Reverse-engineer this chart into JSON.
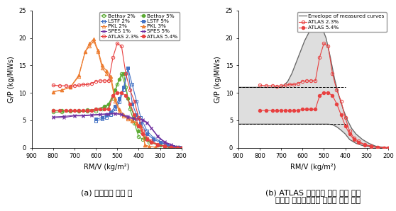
{
  "fig_width": 5.58,
  "fig_height": 2.98,
  "caption_a": "(a) 자연순환 유동 맵",
  "caption_b": "(b) ATLAS 자연순환 유동 맵과 국외\n    열수력 종합효과실험 장치의 커브 밴드",
  "series": [
    {
      "label": "Bethsy 2%",
      "color": "#5aaa32",
      "marker": "o",
      "fillstyle": "none",
      "rmv": [
        800,
        760,
        720,
        680,
        640,
        600,
        570,
        550,
        520,
        500,
        480,
        460,
        440,
        420,
        400,
        380,
        350,
        310,
        270,
        230,
        200
      ],
      "gp": [
        6.5,
        6.5,
        6.6,
        6.6,
        6.6,
        6.7,
        7.0,
        7.5,
        9.0,
        11.5,
        13.5,
        11.0,
        7.0,
        4.5,
        2.0,
        1.5,
        1.0,
        0.5,
        0.2,
        0.05,
        0.0
      ]
    },
    {
      "label": "Bethsy 5%",
      "color": "#5aaa32",
      "marker": "o",
      "fillstyle": "full",
      "rmv": [
        800,
        760,
        720,
        680,
        640,
        600,
        560,
        540,
        510,
        490,
        470,
        450,
        420,
        400,
        370,
        340,
        300,
        260,
        220,
        200
      ],
      "gp": [
        6.8,
        6.8,
        6.8,
        6.8,
        6.9,
        7.0,
        7.5,
        8.0,
        10.5,
        12.5,
        13.5,
        9.0,
        5.5,
        3.0,
        1.8,
        1.0,
        0.5,
        0.2,
        0.05,
        0.0
      ]
    },
    {
      "label": "LSTF 2%",
      "color": "#4472c4",
      "marker": "s",
      "fillstyle": "none",
      "rmv": [
        600,
        570,
        550,
        530,
        510,
        490,
        470,
        450,
        430,
        410,
        390,
        360,
        330,
        300,
        270,
        240,
        210,
        200
      ],
      "gp": [
        4.9,
        5.2,
        5.5,
        6.0,
        7.0,
        8.3,
        10.5,
        14.5,
        11.5,
        8.5,
        5.5,
        3.0,
        1.8,
        1.2,
        0.6,
        0.2,
        0.05,
        0.0
      ]
    },
    {
      "label": "LSTF 5%",
      "color": "#4472c4",
      "marker": "s",
      "fillstyle": "full",
      "rmv": [
        600,
        570,
        550,
        530,
        510,
        490,
        470,
        450,
        430,
        410,
        390,
        360,
        330,
        300,
        270,
        240,
        210,
        200
      ],
      "gp": [
        5.2,
        5.5,
        6.0,
        6.5,
        7.5,
        9.0,
        11.0,
        14.5,
        8.0,
        6.0,
        4.5,
        2.5,
        1.5,
        1.0,
        0.5,
        0.2,
        0.05,
        0.0
      ]
    },
    {
      "label": "PKL 2%",
      "color": "#ed7d31",
      "marker": "^",
      "fillstyle": "none",
      "rmv": [
        800,
        760,
        720,
        680,
        650,
        630,
        610,
        590,
        570,
        550,
        530,
        510,
        490,
        470,
        450,
        430,
        410,
        390,
        370,
        350,
        320
      ],
      "gp": [
        10.2,
        10.5,
        11.0,
        13.0,
        17.5,
        18.5,
        19.5,
        17.5,
        14.5,
        13.5,
        12.5,
        8.5,
        6.5,
        5.8,
        5.2,
        4.8,
        4.5,
        4.0,
        0.5,
        0.2,
        0.1
      ]
    },
    {
      "label": "PKL 3%",
      "color": "#ed7d31",
      "marker": "^",
      "fillstyle": "full",
      "rmv": [
        800,
        760,
        720,
        680,
        650,
        630,
        610,
        590,
        570,
        550,
        530,
        510,
        490,
        470,
        450,
        430,
        410,
        390,
        370,
        350,
        320
      ],
      "gp": [
        10.2,
        10.5,
        11.0,
        13.2,
        17.5,
        19.0,
        19.8,
        17.8,
        15.0,
        14.0,
        13.0,
        9.0,
        7.0,
        6.0,
        5.5,
        5.0,
        4.5,
        4.0,
        0.5,
        0.2,
        0.1
      ]
    },
    {
      "label": "SPES 1%",
      "color": "#7030a0",
      "marker": "x",
      "fillstyle": "none",
      "rmv": [
        800,
        750,
        700,
        660,
        620,
        580,
        545,
        510,
        480,
        450,
        420,
        400,
        380,
        360,
        340,
        310,
        280,
        250,
        220,
        200
      ],
      "gp": [
        5.5,
        5.5,
        5.8,
        5.8,
        5.9,
        6.0,
        6.1,
        6.2,
        6.0,
        5.5,
        5.2,
        5.2,
        5.0,
        4.5,
        3.5,
        2.0,
        1.0,
        0.5,
        0.1,
        0.0
      ]
    },
    {
      "label": "SPES 5%",
      "color": "#7030a0",
      "marker": "x",
      "fillstyle": "full",
      "rmv": [
        800,
        750,
        700,
        660,
        620,
        580,
        545,
        510,
        480,
        450,
        420,
        400,
        380,
        360,
        340,
        310,
        280,
        250,
        220,
        200
      ],
      "gp": [
        5.6,
        5.7,
        5.9,
        5.9,
        6.0,
        6.1,
        6.2,
        6.3,
        6.1,
        5.7,
        5.4,
        5.3,
        5.1,
        4.6,
        3.6,
        2.1,
        1.1,
        0.6,
        0.15,
        0.0
      ]
    },
    {
      "label": "ATLAS 2.3%",
      "color": "#e84040",
      "marker": "o",
      "fillstyle": "none",
      "rmv": [
        800,
        770,
        740,
        720,
        700,
        680,
        660,
        640,
        620,
        600,
        580,
        560,
        540,
        520,
        500,
        480,
        460,
        440,
        420,
        400,
        380,
        360,
        340,
        310,
        280,
        250,
        220,
        200
      ],
      "gp": [
        11.4,
        11.3,
        11.3,
        11.2,
        11.3,
        11.4,
        11.5,
        11.5,
        11.7,
        12.1,
        12.2,
        12.2,
        12.2,
        16.5,
        19.0,
        18.5,
        13.5,
        10.5,
        8.5,
        5.5,
        3.0,
        1.8,
        1.2,
        0.6,
        0.3,
        0.1,
        0.0,
        0.0
      ]
    },
    {
      "label": "ATLAS 5.4%",
      "color": "#e84040",
      "marker": "o",
      "fillstyle": "full",
      "rmv": [
        800,
        770,
        740,
        720,
        700,
        680,
        660,
        640,
        620,
        600,
        580,
        560,
        540,
        520,
        500,
        480,
        460,
        440,
        420,
        400,
        380,
        360,
        340,
        310,
        280,
        250,
        220,
        200
      ],
      "gp": [
        6.8,
        6.8,
        6.8,
        6.8,
        6.8,
        6.8,
        6.8,
        6.8,
        6.8,
        7.0,
        7.0,
        7.0,
        7.0,
        9.5,
        10.0,
        10.0,
        9.5,
        8.0,
        6.0,
        4.0,
        2.5,
        1.5,
        1.0,
        0.5,
        0.2,
        0.05,
        0.0,
        0.0
      ]
    }
  ],
  "atlas_23": {
    "rmv": [
      800,
      770,
      740,
      720,
      700,
      680,
      660,
      640,
      620,
      600,
      580,
      560,
      540,
      520,
      500,
      480,
      460,
      440,
      420,
      400,
      380,
      360,
      340,
      310,
      280,
      250,
      220,
      200
    ],
    "gp": [
      11.4,
      11.3,
      11.3,
      11.2,
      11.3,
      11.4,
      11.5,
      11.5,
      11.7,
      12.1,
      12.2,
      12.2,
      12.2,
      16.5,
      19.0,
      18.5,
      13.5,
      10.5,
      8.5,
      5.5,
      3.0,
      1.8,
      1.2,
      0.6,
      0.3,
      0.1,
      0.0,
      0.0
    ]
  },
  "atlas_54": {
    "rmv": [
      800,
      770,
      740,
      720,
      700,
      680,
      660,
      640,
      620,
      600,
      580,
      560,
      540,
      520,
      500,
      480,
      460,
      440,
      420,
      400,
      380,
      360,
      340,
      310,
      280,
      250,
      220,
      200
    ],
    "gp": [
      6.8,
      6.8,
      6.8,
      6.8,
      6.8,
      6.8,
      6.8,
      6.8,
      6.8,
      7.0,
      7.0,
      7.0,
      7.0,
      9.5,
      10.0,
      10.0,
      9.5,
      8.0,
      6.0,
      4.0,
      2.5,
      1.5,
      1.0,
      0.5,
      0.2,
      0.05,
      0.0,
      0.0
    ]
  },
  "envelope_upper": {
    "rmv": [
      900,
      850,
      800,
      750,
      700,
      670,
      650,
      630,
      610,
      590,
      570,
      550,
      530,
      510,
      490,
      470,
      450,
      430,
      410,
      390,
      370,
      350,
      320,
      290,
      260,
      230,
      200
    ],
    "gp": [
      11.0,
      11.0,
      11.0,
      11.0,
      11.0,
      12.0,
      13.5,
      15.5,
      17.5,
      19.5,
      21.0,
      22.0,
      22.0,
      22.0,
      20.0,
      16.5,
      12.5,
      9.5,
      7.0,
      5.0,
      3.5,
      2.5,
      1.5,
      0.8,
      0.3,
      0.1,
      0.0
    ]
  },
  "envelope_lower": {
    "rmv": [
      900,
      850,
      800,
      700,
      620,
      600,
      580,
      560,
      540,
      520,
      500,
      480,
      460,
      440,
      420,
      400,
      380,
      350,
      320,
      290,
      260,
      230,
      200
    ],
    "gp": [
      4.3,
      4.3,
      4.3,
      4.3,
      4.3,
      4.3,
      4.3,
      4.3,
      4.3,
      4.3,
      4.3,
      4.3,
      4.2,
      3.8,
      3.2,
      2.5,
      1.5,
      0.8,
      0.4,
      0.2,
      0.1,
      0.05,
      0.0
    ]
  },
  "dashed_upper_y": 11.0,
  "dashed_lower_y": 4.3,
  "xlim": [
    200,
    900
  ],
  "ylim": [
    0,
    25
  ],
  "yticks": [
    0,
    5,
    10,
    15,
    20,
    25
  ],
  "xticks": [
    200,
    300,
    400,
    500,
    600,
    700,
    800,
    900
  ],
  "axis_label_x": "RM/V (kg/m²)",
  "axis_label_y": "G/P (kg/MWs)",
  "background_color": "#ffffff",
  "legend_fontsize": 5.2,
  "tick_fontsize": 6,
  "axis_label_fontsize": 7
}
